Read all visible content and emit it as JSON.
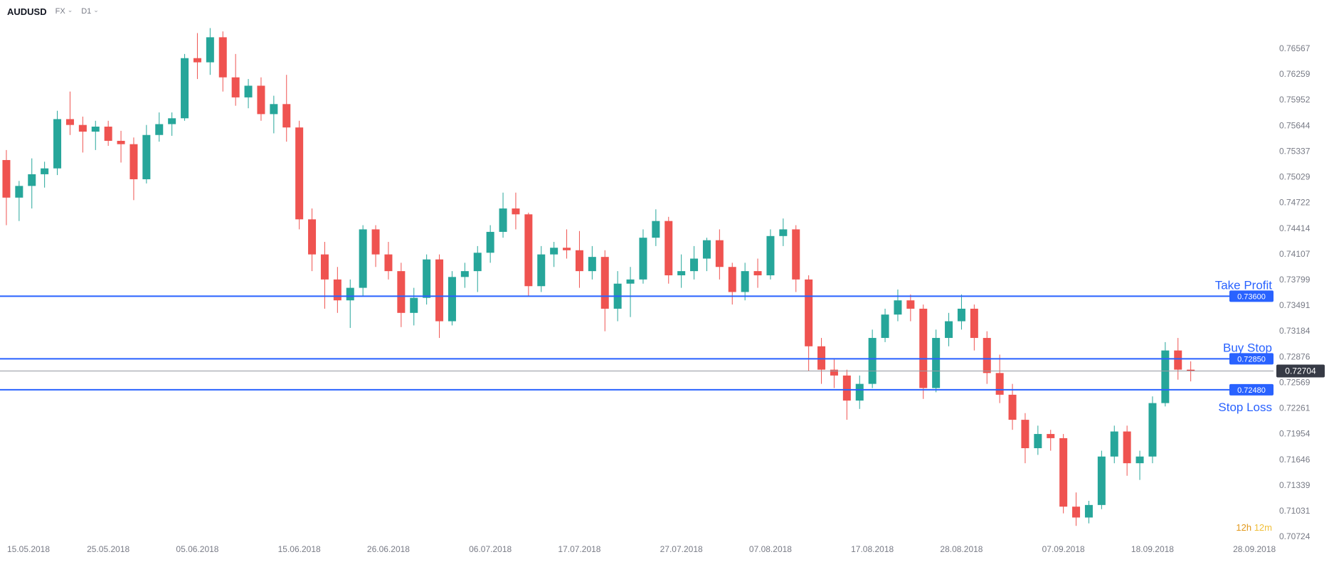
{
  "toolbar": {
    "symbol": "AUDUSD",
    "market": "FX",
    "interval": "D1"
  },
  "colors": {
    "up": "#26a69a",
    "down": "#ef5350",
    "order_blue": "#2962ff",
    "axis_text": "#787b86",
    "current_line": "#9598a1",
    "current_badge_bg": "#363a45",
    "badge_text": "#ffffff",
    "countdown_hours": "#e2991c",
    "countdown_minutes": "#f0bf3a",
    "background": "#ffffff"
  },
  "chart_data": {
    "type": "candlestick",
    "symbol": "AUDUSD",
    "interval": "D1",
    "title": "AUDUSD FX D1",
    "ylim": [
      0.70724,
      0.76567
    ],
    "grid": false,
    "y_axis": {
      "labels": [
        "0.76567",
        "0.76259",
        "0.75952",
        "0.75644",
        "0.75337",
        "0.75029",
        "0.74722",
        "0.74414",
        "0.74107",
        "0.73799",
        "0.73491",
        "0.73184",
        "0.72876",
        "0.72569",
        "0.72261",
        "0.71954",
        "0.71646",
        "0.71339",
        "0.71031",
        "0.70724"
      ]
    },
    "x_axis": {
      "total_slots": 100,
      "labels": [
        {
          "text": "15.05.2018",
          "slot": 0
        },
        {
          "text": "25.05.2018",
          "slot": 8
        },
        {
          "text": "05.06.2018",
          "slot": 15
        },
        {
          "text": "15.06.2018",
          "slot": 23
        },
        {
          "text": "26.06.2018",
          "slot": 30
        },
        {
          "text": "06.07.2018",
          "slot": 38
        },
        {
          "text": "17.07.2018",
          "slot": 45
        },
        {
          "text": "27.07.2018",
          "slot": 53
        },
        {
          "text": "07.08.2018",
          "slot": 60
        },
        {
          "text": "17.08.2018",
          "slot": 68
        },
        {
          "text": "28.08.2018",
          "slot": 75
        },
        {
          "text": "07.09.2018",
          "slot": 83
        },
        {
          "text": "18.09.2018",
          "slot": 90
        },
        {
          "text": "28.09.2018",
          "slot": 98
        }
      ]
    },
    "columns": [
      "date",
      "open",
      "high",
      "low",
      "close"
    ],
    "candles": [
      [
        "15.05.2018",
        0.7523,
        0.7535,
        0.7445,
        0.7478
      ],
      [
        "16.05.2018",
        0.7478,
        0.7498,
        0.745,
        0.7492
      ],
      [
        "17.05.2018",
        0.7492,
        0.7525,
        0.7465,
        0.7506
      ],
      [
        "18.05.2018",
        0.7506,
        0.7521,
        0.749,
        0.7513
      ],
      [
        "21.05.2018",
        0.7513,
        0.7582,
        0.7505,
        0.7572
      ],
      [
        "22.05.2018",
        0.7572,
        0.7605,
        0.7553,
        0.7565
      ],
      [
        "23.05.2018",
        0.7565,
        0.7575,
        0.7532,
        0.7557
      ],
      [
        "24.05.2018",
        0.7557,
        0.757,
        0.7535,
        0.7563
      ],
      [
        "25.05.2018",
        0.7563,
        0.757,
        0.754,
        0.7546
      ],
      [
        "28.05.2018",
        0.7546,
        0.7558,
        0.752,
        0.7542
      ],
      [
        "29.05.2018",
        0.7542,
        0.755,
        0.7475,
        0.75
      ],
      [
        "30.05.2018",
        0.75,
        0.7565,
        0.7495,
        0.7553
      ],
      [
        "31.05.2018",
        0.7553,
        0.758,
        0.7545,
        0.7566
      ],
      [
        "01.06.2018",
        0.7566,
        0.758,
        0.7552,
        0.7573
      ],
      [
        "04.06.2018",
        0.7573,
        0.765,
        0.757,
        0.7645
      ],
      [
        "05.06.2018",
        0.7645,
        0.7675,
        0.762,
        0.764
      ],
      [
        "06.06.2018",
        0.764,
        0.7681,
        0.7625,
        0.767
      ],
      [
        "07.06.2018",
        0.767,
        0.7677,
        0.7605,
        0.7622
      ],
      [
        "08.06.2018",
        0.7622,
        0.765,
        0.7588,
        0.7598
      ],
      [
        "11.06.2018",
        0.7598,
        0.762,
        0.7585,
        0.7612
      ],
      [
        "12.06.2018",
        0.7612,
        0.7622,
        0.757,
        0.7578
      ],
      [
        "13.06.2018",
        0.7578,
        0.76,
        0.7555,
        0.759
      ],
      [
        "14.06.2018",
        0.759,
        0.7625,
        0.7545,
        0.7562
      ],
      [
        "15.06.2018",
        0.7562,
        0.757,
        0.744,
        0.7452
      ],
      [
        "18.06.2018",
        0.7452,
        0.7465,
        0.739,
        0.741
      ],
      [
        "19.06.2018",
        0.741,
        0.7425,
        0.7345,
        0.738
      ],
      [
        "20.06.2018",
        0.738,
        0.7395,
        0.734,
        0.7355
      ],
      [
        "21.06.2018",
        0.7355,
        0.738,
        0.7322,
        0.737
      ],
      [
        "22.06.2018",
        0.737,
        0.7445,
        0.736,
        0.744
      ],
      [
        "25.06.2018",
        0.744,
        0.7445,
        0.7395,
        0.741
      ],
      [
        "26.06.2018",
        0.741,
        0.7425,
        0.738,
        0.739
      ],
      [
        "27.06.2018",
        0.739,
        0.74,
        0.7323,
        0.734
      ],
      [
        "28.06.2018",
        0.734,
        0.737,
        0.7325,
        0.7358
      ],
      [
        "29.06.2018",
        0.7358,
        0.741,
        0.735,
        0.7404
      ],
      [
        "02.07.2018",
        0.7404,
        0.741,
        0.731,
        0.733
      ],
      [
        "03.07.2018",
        0.733,
        0.739,
        0.7325,
        0.7383
      ],
      [
        "04.07.2018",
        0.7383,
        0.74,
        0.737,
        0.739
      ],
      [
        "05.07.2018",
        0.739,
        0.742,
        0.7365,
        0.7412
      ],
      [
        "06.07.2018",
        0.7412,
        0.7445,
        0.74,
        0.7437
      ],
      [
        "09.07.2018",
        0.7437,
        0.7484,
        0.743,
        0.7465
      ],
      [
        "10.07.2018",
        0.7465,
        0.7484,
        0.744,
        0.7458
      ],
      [
        "11.07.2018",
        0.7458,
        0.746,
        0.736,
        0.7372
      ],
      [
        "12.07.2018",
        0.7372,
        0.742,
        0.7365,
        0.741
      ],
      [
        "13.07.2018",
        0.741,
        0.7425,
        0.7395,
        0.7418
      ],
      [
        "16.07.2018",
        0.7418,
        0.744,
        0.7405,
        0.7415
      ],
      [
        "17.07.2018",
        0.7415,
        0.7438,
        0.737,
        0.739
      ],
      [
        "18.07.2018",
        0.739,
        0.742,
        0.738,
        0.7407
      ],
      [
        "19.07.2018",
        0.7407,
        0.7415,
        0.7318,
        0.7345
      ],
      [
        "20.07.2018",
        0.7345,
        0.739,
        0.733,
        0.7375
      ],
      [
        "23.07.2018",
        0.7375,
        0.7395,
        0.7335,
        0.738
      ],
      [
        "24.07.2018",
        0.738,
        0.744,
        0.7375,
        0.743
      ],
      [
        "25.07.2018",
        0.743,
        0.7464,
        0.742,
        0.745
      ],
      [
        "26.07.2018",
        0.745,
        0.7455,
        0.7375,
        0.7385
      ],
      [
        "27.07.2018",
        0.7385,
        0.741,
        0.737,
        0.739
      ],
      [
        "30.07.2018",
        0.739,
        0.742,
        0.738,
        0.7405
      ],
      [
        "31.07.2018",
        0.7405,
        0.743,
        0.739,
        0.7427
      ],
      [
        "01.08.2018",
        0.7427,
        0.744,
        0.738,
        0.7395
      ],
      [
        "02.08.2018",
        0.7395,
        0.74,
        0.735,
        0.7365
      ],
      [
        "03.08.2018",
        0.7365,
        0.74,
        0.7355,
        0.739
      ],
      [
        "06.08.2018",
        0.739,
        0.7405,
        0.737,
        0.7385
      ],
      [
        "07.08.2018",
        0.7385,
        0.744,
        0.738,
        0.7432
      ],
      [
        "08.08.2018",
        0.7432,
        0.7453,
        0.742,
        0.744
      ],
      [
        "09.08.2018",
        0.744,
        0.7445,
        0.7365,
        0.738
      ],
      [
        "10.08.2018",
        0.738,
        0.7385,
        0.727,
        0.73
      ],
      [
        "13.08.2018",
        0.73,
        0.731,
        0.7255,
        0.7272
      ],
      [
        "14.08.2018",
        0.7272,
        0.7285,
        0.725,
        0.7265
      ],
      [
        "15.08.2018",
        0.7265,
        0.7272,
        0.7212,
        0.7235
      ],
      [
        "16.08.2018",
        0.7235,
        0.7265,
        0.7225,
        0.7255
      ],
      [
        "17.08.2018",
        0.7255,
        0.732,
        0.725,
        0.731
      ],
      [
        "20.08.2018",
        0.731,
        0.7345,
        0.7305,
        0.7338
      ],
      [
        "21.08.2018",
        0.7338,
        0.7368,
        0.733,
        0.7355
      ],
      [
        "22.08.2018",
        0.7355,
        0.7362,
        0.733,
        0.7345
      ],
      [
        "23.08.2018",
        0.7345,
        0.735,
        0.7237,
        0.725
      ],
      [
        "24.08.2018",
        0.725,
        0.732,
        0.7245,
        0.731
      ],
      [
        "27.08.2018",
        0.731,
        0.734,
        0.73,
        0.733
      ],
      [
        "28.08.2018",
        0.733,
        0.7362,
        0.732,
        0.7345
      ],
      [
        "29.08.2018",
        0.7345,
        0.735,
        0.7295,
        0.731
      ],
      [
        "30.08.2018",
        0.731,
        0.7318,
        0.7255,
        0.7268
      ],
      [
        "31.08.2018",
        0.7268,
        0.729,
        0.7232,
        0.7242
      ],
      [
        "03.09.2018",
        0.7242,
        0.7255,
        0.72,
        0.7212
      ],
      [
        "04.09.2018",
        0.7212,
        0.722,
        0.716,
        0.7178
      ],
      [
        "05.09.2018",
        0.7178,
        0.7205,
        0.717,
        0.7195
      ],
      [
        "06.09.2018",
        0.7195,
        0.72,
        0.7175,
        0.719
      ],
      [
        "07.09.2018",
        0.719,
        0.7195,
        0.71,
        0.7108
      ],
      [
        "10.09.2018",
        0.7108,
        0.7125,
        0.7085,
        0.7095
      ],
      [
        "11.09.2018",
        0.7095,
        0.7115,
        0.7088,
        0.711
      ],
      [
        "12.09.2018",
        0.711,
        0.7175,
        0.7105,
        0.7168
      ],
      [
        "13.09.2018",
        0.7168,
        0.7205,
        0.716,
        0.7198
      ],
      [
        "14.09.2018",
        0.7198,
        0.7205,
        0.7145,
        0.716
      ],
      [
        "17.09.2018",
        0.716,
        0.7175,
        0.714,
        0.7168
      ],
      [
        "18.09.2018",
        0.7168,
        0.724,
        0.716,
        0.7232
      ],
      [
        "19.09.2018",
        0.7232,
        0.7305,
        0.7228,
        0.7295
      ],
      [
        "20.09.2018",
        0.7295,
        0.731,
        0.726,
        0.7272
      ],
      [
        "21.09.2018",
        0.7272,
        0.7282,
        0.7258,
        0.72704
      ]
    ],
    "levels": [
      {
        "name": "Take Profit",
        "price": 0.736,
        "badge": "0.73600",
        "label_position": "above"
      },
      {
        "name": "Buy Stop",
        "price": 0.7285,
        "badge": "0.72850",
        "label_position": "above"
      },
      {
        "name": "Stop Loss",
        "price": 0.7248,
        "badge": "0.72480",
        "label_position": "below"
      }
    ],
    "current_price": {
      "value": 0.72704,
      "badge": "0.72704"
    },
    "countdown": {
      "hours": "12h",
      "minutes": "12m"
    }
  }
}
